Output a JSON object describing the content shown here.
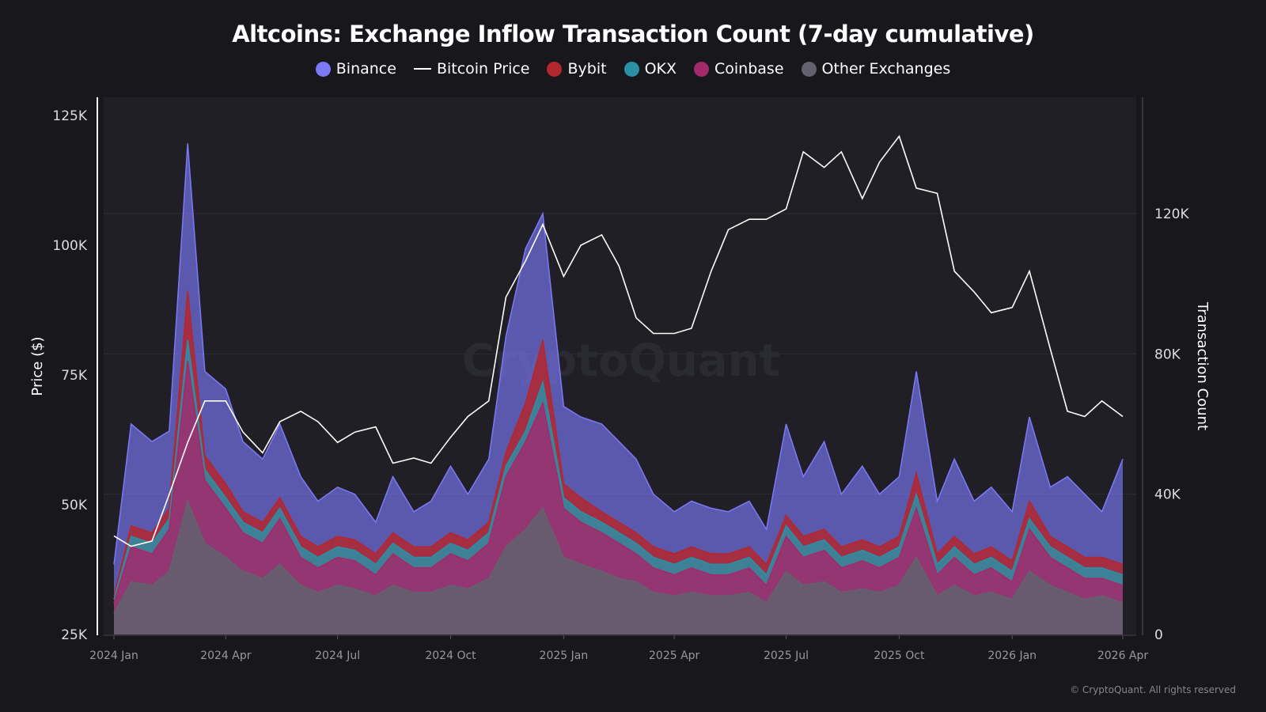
{
  "chart_data": {
    "type": "area",
    "title": "Altcoins: Exchange Inflow Transaction Count (7-day cumulative)",
    "ylabel_left": "Price ($)",
    "ylabel_right": "Transaction Count",
    "ylim_left": [
      25000,
      125000
    ],
    "ylim_right": [
      0,
      150000
    ],
    "left_ticks": [
      "25K",
      "50K",
      "75K",
      "100K",
      "125K"
    ],
    "left_tick_values": [
      25000,
      50000,
      75000,
      100000,
      125000
    ],
    "right_ticks": [
      "0",
      "40K",
      "80K",
      "120K"
    ],
    "right_tick_values": [
      0,
      40000,
      80000,
      120000
    ],
    "x_ticks": [
      "2024 Jan",
      "2024 Apr",
      "2024 Jul",
      "2024 Oct",
      "2025 Jan",
      "2025 Apr",
      "2025 Jul",
      "2025 Oct",
      "2026 Jan",
      "2026 Apr"
    ],
    "x_tick_dates": [
      "2024-01-01",
      "2024-04-01",
      "2024-07-01",
      "2024-10-01",
      "2025-01-01",
      "2025-04-01",
      "2025-07-01",
      "2025-10-01",
      "2026-01-01",
      "2026-04-01"
    ],
    "grid": true,
    "legend_position": "top-center",
    "stacked": true,
    "x": [
      "2024-01-01",
      "2024-01-15",
      "2024-02-01",
      "2024-02-15",
      "2024-03-01",
      "2024-03-15",
      "2024-04-01",
      "2024-04-15",
      "2024-05-01",
      "2024-05-15",
      "2024-06-01",
      "2024-06-15",
      "2024-07-01",
      "2024-07-15",
      "2024-08-01",
      "2024-08-15",
      "2024-09-01",
      "2024-09-15",
      "2024-10-01",
      "2024-10-15",
      "2024-11-01",
      "2024-11-15",
      "2024-12-01",
      "2024-12-15",
      "2025-01-01",
      "2025-01-15",
      "2025-02-01",
      "2025-02-15",
      "2025-03-01",
      "2025-03-15",
      "2025-04-01",
      "2025-04-15",
      "2025-05-01",
      "2025-05-15",
      "2025-06-01",
      "2025-06-15",
      "2025-07-01",
      "2025-07-15",
      "2025-08-01",
      "2025-08-15",
      "2025-09-01",
      "2025-09-15",
      "2025-10-01",
      "2025-10-15",
      "2025-11-01",
      "2025-11-15",
      "2025-12-01",
      "2025-12-15",
      "2026-01-01",
      "2026-01-15",
      "2026-02-01",
      "2026-02-15",
      "2026-03-01",
      "2026-03-15",
      "2026-04-01"
    ],
    "series": [
      {
        "name": "Other Exchanges",
        "color": "#62626e",
        "axis": "right",
        "values": [
          6000,
          15000,
          14000,
          18000,
          38000,
          26000,
          22000,
          18000,
          16000,
          20000,
          14000,
          12000,
          14000,
          13000,
          11000,
          14000,
          12000,
          12000,
          14000,
          13000,
          16000,
          25000,
          30000,
          36000,
          22000,
          20000,
          18000,
          16000,
          15000,
          12000,
          11000,
          12000,
          11000,
          11000,
          12000,
          9000,
          18000,
          14000,
          15000,
          12000,
          13000,
          12000,
          14000,
          22000,
          11000,
          14000,
          11000,
          12000,
          10000,
          18000,
          14000,
          12000,
          10000,
          11000,
          9000
        ]
      },
      {
        "name": "Coinbase",
        "color": "#a3296a",
        "axis": "right",
        "values": [
          3000,
          10000,
          9000,
          12000,
          40000,
          18000,
          14000,
          11000,
          10000,
          13000,
          8000,
          7000,
          8000,
          8000,
          6000,
          9000,
          7000,
          7000,
          9000,
          8000,
          10000,
          20000,
          25000,
          30000,
          14000,
          12000,
          11000,
          10000,
          8000,
          7000,
          6000,
          7000,
          6000,
          6000,
          7000,
          5000,
          10000,
          8000,
          9000,
          7000,
          8000,
          7000,
          8000,
          14000,
          6000,
          8000,
          6000,
          7000,
          5000,
          12000,
          8000,
          7000,
          6000,
          5000,
          5000
        ]
      },
      {
        "name": "OKX",
        "color": "#2b8fa6",
        "axis": "right",
        "values": [
          1000,
          3000,
          3000,
          3000,
          6000,
          3000,
          3000,
          3000,
          3000,
          3000,
          3000,
          3000,
          3000,
          3000,
          3000,
          3000,
          3000,
          3000,
          3000,
          3000,
          3000,
          3000,
          3000,
          6000,
          3000,
          3000,
          3000,
          3000,
          3000,
          3000,
          3000,
          3000,
          3000,
          3000,
          3000,
          3000,
          3000,
          3000,
          3000,
          3000,
          3000,
          3000,
          3000,
          4000,
          3000,
          3000,
          3000,
          3000,
          3000,
          3000,
          3000,
          3000,
          3000,
          3000,
          3000
        ]
      },
      {
        "name": "Bybit",
        "color": "#b3272f",
        "axis": "right",
        "values": [
          1000,
          3000,
          3000,
          3000,
          14000,
          4000,
          4000,
          3000,
          3000,
          3000,
          3000,
          3000,
          3000,
          3000,
          3000,
          3000,
          3000,
          3000,
          3000,
          3000,
          3000,
          4000,
          8000,
          12000,
          4000,
          4000,
          3000,
          3000,
          3000,
          3000,
          3000,
          3000,
          3000,
          3000,
          3000,
          3000,
          3000,
          3000,
          3000,
          3000,
          3000,
          3000,
          3000,
          6000,
          3000,
          3000,
          3000,
          3000,
          3000,
          5000,
          3000,
          3000,
          3000,
          3000,
          3000
        ]
      },
      {
        "name": "Binance",
        "color": "#7c79f7",
        "axis": "right",
        "values": [
          9000,
          29000,
          26000,
          22000,
          42000,
          24000,
          27000,
          20000,
          18000,
          21000,
          17000,
          13000,
          14000,
          13000,
          9000,
          16000,
          10000,
          13000,
          19000,
          13000,
          18000,
          33000,
          44000,
          36000,
          22000,
          23000,
          25000,
          23000,
          21000,
          15000,
          12000,
          13000,
          13000,
          12000,
          13000,
          10000,
          26000,
          17000,
          25000,
          15000,
          21000,
          15000,
          17000,
          29000,
          15000,
          22000,
          15000,
          17000,
          14000,
          24000,
          14000,
          20000,
          18000,
          13000,
          30000
        ]
      },
      {
        "name": "Bitcoin Price",
        "color": "#ffffff",
        "axis": "left",
        "type": "line",
        "values": [
          44000,
          42000,
          43000,
          52000,
          62000,
          70000,
          70000,
          64000,
          60000,
          66000,
          68000,
          66000,
          62000,
          64000,
          65000,
          58000,
          59000,
          58000,
          63000,
          67000,
          70000,
          90000,
          97000,
          104000,
          94000,
          100000,
          102000,
          96000,
          86000,
          83000,
          83000,
          84000,
          95000,
          103000,
          105000,
          105000,
          107000,
          118000,
          115000,
          118000,
          109000,
          116000,
          121000,
          111000,
          110000,
          95000,
          91000,
          87000,
          88000,
          95000,
          80000,
          68000,
          67000,
          70000,
          67000
        ]
      }
    ]
  },
  "legend": [
    {
      "label": "Binance",
      "color": "#7c79f7",
      "kind": "dot"
    },
    {
      "label": "Bitcoin Price",
      "color": "#ffffff",
      "kind": "line"
    },
    {
      "label": "Bybit",
      "color": "#b3272f",
      "kind": "dot"
    },
    {
      "label": "OKX",
      "color": "#2b8fa6",
      "kind": "dot"
    },
    {
      "label": "Coinbase",
      "color": "#a3296a",
      "kind": "dot"
    },
    {
      "label": "Other Exchanges",
      "color": "#62626e",
      "kind": "dot"
    }
  ],
  "watermark": "CryptoQuant",
  "copyright": "© CryptoQuant. All rights reserved"
}
